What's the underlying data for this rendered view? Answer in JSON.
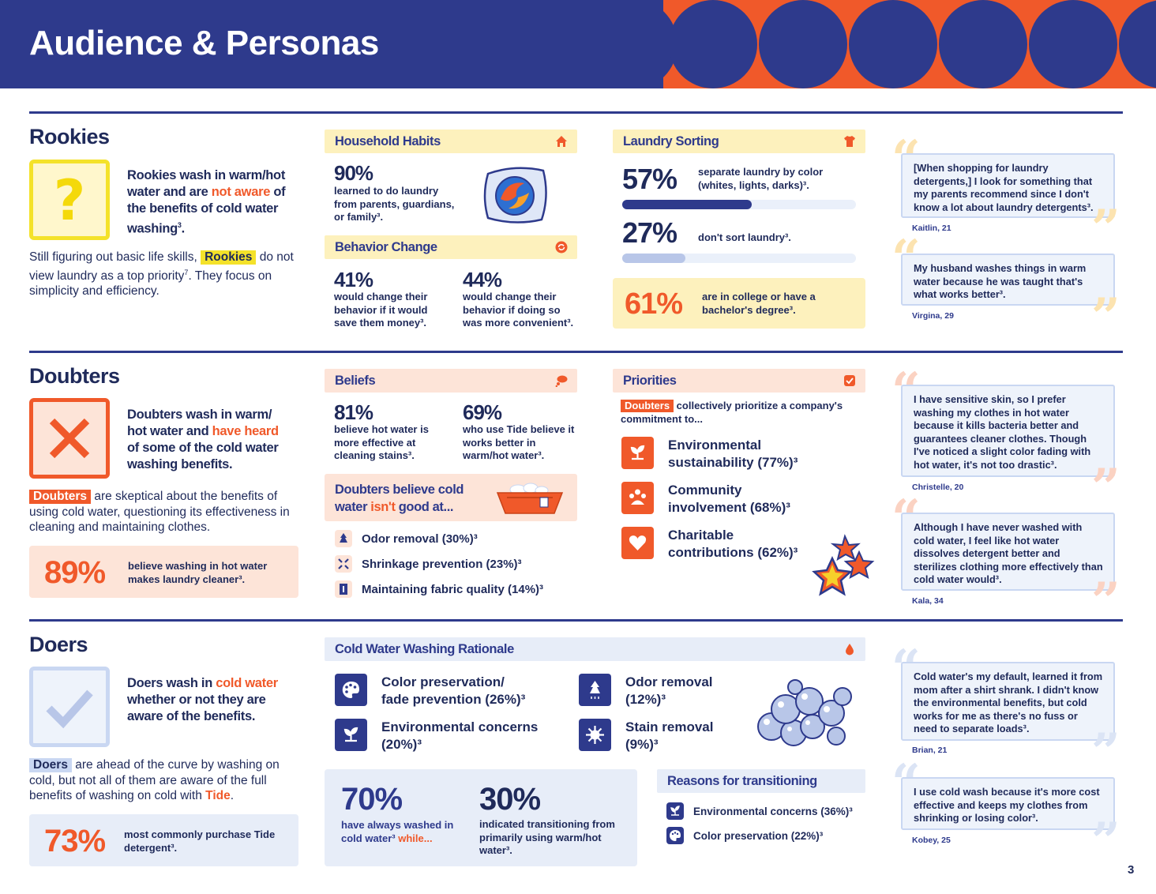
{
  "header": {
    "title": "Audience & Personas"
  },
  "page_number": "3",
  "rookies": {
    "title": "Rookies",
    "lead_1": "Rookies wash in warm/hot water and are ",
    "lead_hl": "not aware",
    "lead_2": " of the benefits of cold water washing",
    "lead_sup": "3",
    "lead_end": ".",
    "body_1": "Still figuring out basic life skills, ",
    "body_chip": "Rookies",
    "body_2": " do not view laundry as a top priority",
    "body_sup": "7",
    "body_3": ". They focus on simplicity and efficiency.",
    "household": {
      "title": "Household Habits",
      "stat": "90%",
      "text": "learned to do laundry from parents, guardians, or family³."
    },
    "behavior": {
      "title": "Behavior Change",
      "stat1": "41%",
      "text1": "would change their behavior if it would save them money³.",
      "stat2": "44%",
      "text2": "would change their behavior if doing so was more convenient³."
    },
    "sorting": {
      "title": "Laundry Sorting",
      "stat1": "57%",
      "text1": "separate laundry by color (whites, lights, darks)³.",
      "bar1": 0.57,
      "stat2": "27%",
      "text2": "don't sort laundry³.",
      "bar2": 0.27,
      "stat3": "61%",
      "text3": "are in college or have a bachelor's degree³."
    },
    "quotes": [
      {
        "text": "[When shopping for laundry detergents,] I look for something that my parents recommend since I don't know a lot about laundry detergents³.",
        "name": "Kaitlin, 21"
      },
      {
        "text": "My husband washes things in warm water because he was taught that's what works better³.",
        "name": "Virgina, 29"
      }
    ]
  },
  "doubters": {
    "title": "Doubters",
    "lead_1": "Doubters wash in warm/ hot water and ",
    "lead_hl": "have heard",
    "lead_2": " of some of the cold water washing benefits.",
    "body_chip": "Doubters",
    "body_1": " are skeptical about the benefits of using cold water, questioning its effectiveness in cleaning and maintaining clothes.",
    "stat": "89%",
    "stat_text": "believe washing in hot water makes laundry cleaner³.",
    "beliefs": {
      "title": "Beliefs",
      "stat1": "81%",
      "text1": "believe hot water is more effective at cleaning stains³.",
      "stat2": "69%",
      "text2": "who use Tide believe it works better in warm/hot water³."
    },
    "cold_bad": {
      "title_1": "Doubters believe cold water ",
      "title_hl": "isn't",
      "title_2": " good at...",
      "items": [
        "Odor removal (30%)³",
        "Shrinkage prevention (23%)³",
        "Maintaining fabric quality (14%)³"
      ]
    },
    "priorities": {
      "title": "Priorities",
      "chip": "Doubters",
      "intro": " collectively prioritize a company's commitment to...",
      "items": [
        {
          "l1": "Environmental",
          "l2": "sustainability (77%)³"
        },
        {
          "l1": "Community",
          "l2": "involvement (68%)³"
        },
        {
          "l1": "Charitable",
          "l2": "contributions (62%)³"
        }
      ]
    },
    "quotes": [
      {
        "text": "I have sensitive skin, so I prefer washing my clothes in hot water because it kills bacteria better and guarantees cleaner clothes. Though I've noticed a slight color fading with hot water, it's not too drastic³.",
        "name": "Christelle, 20"
      },
      {
        "text": "Although I have never washed with cold water, I feel like hot water dissolves detergent better and sterilizes clothing more effectively than cold water would³.",
        "name": "Kala, 34"
      }
    ]
  },
  "doers": {
    "title": "Doers",
    "lead_1": "Doers wash in ",
    "lead_hl": "cold water",
    "lead_2": " whether or not they are aware of the benefits.",
    "body_chip": "Doers",
    "body_1": " are ahead of the curve by washing on cold, but not all of them are aware of the full benefits of washing on cold with ",
    "body_hl": "Tide",
    "body_end": ".",
    "stat": "73%",
    "stat_text": "most commonly purchase Tide detergent³.",
    "rationale": {
      "title": "Cold Water Washing Rationale",
      "items": [
        {
          "l1": "Color preservation/",
          "l2": "fade prevention (26%)³"
        },
        {
          "l1": "Environmental concerns",
          "l2": "(20%)³"
        },
        {
          "l1": "Odor removal",
          "l2": "(12%)³"
        },
        {
          "l1": "Stain removal",
          "l2": "(9%)³"
        }
      ]
    },
    "transition": {
      "stat1": "70%",
      "text1a": "have always washed in cold water³ ",
      "text1hl": "while...",
      "stat2": "30%",
      "text2": "indicated transitioning from primarily using warm/hot water³."
    },
    "reasons": {
      "title": "Reasons for transitioning",
      "items": [
        "Environmental concerns (36%)³",
        "Color preservation (22%)³"
      ]
    },
    "quotes": [
      {
        "text": "Cold water's my default, learned it from mom after a shirt shrank. I didn't know the environmental benefits, but cold works for me as there's no fuss or need to separate loads³.",
        "name": "Brian, 21"
      },
      {
        "text": "I use cold wash because it's more cost effective and keeps my clothes from shrinking or losing color³.",
        "name": "Kobey, 25"
      }
    ]
  }
}
